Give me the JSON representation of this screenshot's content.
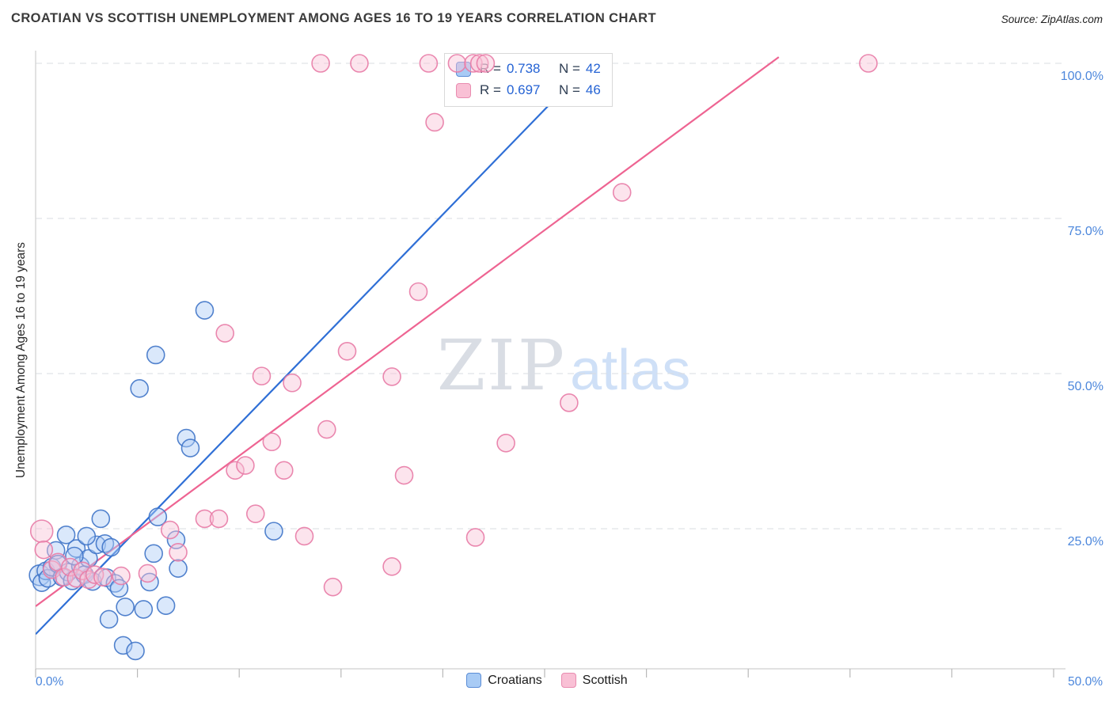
{
  "title": "CROATIAN VS SCOTTISH UNEMPLOYMENT AMONG AGES 16 TO 19 YEARS CORRELATION CHART",
  "source": "Source: ZipAtlas.com",
  "watermark": {
    "zip": "ZIP",
    "atlas": "atlas"
  },
  "legend_box": {
    "series": [
      {
        "name": "Croatians",
        "r_label": "R =",
        "r": "0.738",
        "n_label": "N =",
        "n": "42"
      },
      {
        "name": "Scottish",
        "r_label": "R =",
        "r": "0.697",
        "n_label": "N =",
        "n": "46"
      }
    ]
  },
  "axes": {
    "y_title": "Unemployment Among Ages 16 to 19 years",
    "y_ticks": [
      "100.0%",
      "75.0%",
      "50.0%",
      "25.0%"
    ],
    "x_min_label": "0.0%",
    "x_max_label": "50.0%"
  },
  "bottom_legend": [
    {
      "label": "Croatians"
    },
    {
      "label": "Scottish"
    }
  ],
  "colors": {
    "croatian_fill": "#aecdf6",
    "croatian_stroke": "#3f74c8",
    "croatian_line": "#2f6fd6",
    "scottish_fill": "#f9c4d7",
    "scottish_stroke": "#e87ba6",
    "scottish_line": "#ee6492",
    "axis_label_blue": "#4c87dc",
    "grid": "#dadde2"
  },
  "chart_data": {
    "type": "scatter",
    "xlabel": "",
    "ylabel": "Unemployment Among Ages 16 to 19 years",
    "xlim": [
      0,
      50
    ],
    "ylim": [
      0,
      105
    ],
    "x_tick_positions": [
      0,
      5,
      10,
      15,
      20,
      25,
      30,
      35,
      40,
      45,
      50
    ],
    "y_gridlines": [
      25,
      50,
      75,
      100
    ],
    "series": [
      {
        "name": "Croatians",
        "fill": "#aecdf6",
        "stroke": "#3f74c8",
        "points": [
          [
            0.2,
            17.5,
            13
          ],
          [
            0.3,
            16.3
          ],
          [
            0.5,
            18.2
          ],
          [
            0.6,
            17.0
          ],
          [
            0.8,
            18.8
          ],
          [
            1.0,
            21.5
          ],
          [
            1.1,
            19.3
          ],
          [
            1.3,
            17.2
          ],
          [
            1.5,
            24.0
          ],
          [
            1.6,
            18.0
          ],
          [
            1.8,
            16.6
          ],
          [
            2.0,
            21.8
          ],
          [
            2.2,
            19.0
          ],
          [
            2.4,
            17.6
          ],
          [
            2.6,
            20.2
          ],
          [
            2.8,
            16.5
          ],
          [
            3.0,
            22.4
          ],
          [
            3.2,
            26.6
          ],
          [
            3.4,
            22.6
          ],
          [
            3.5,
            17.1
          ],
          [
            3.7,
            22.0
          ],
          [
            3.9,
            16.2
          ],
          [
            4.1,
            15.4
          ],
          [
            4.4,
            12.4
          ],
          [
            3.6,
            10.4
          ],
          [
            4.3,
            6.2
          ],
          [
            4.9,
            5.3
          ],
          [
            5.3,
            12.0
          ],
          [
            5.6,
            16.4
          ],
          [
            6.0,
            26.9
          ],
          [
            5.1,
            47.6
          ],
          [
            5.9,
            53.0
          ],
          [
            8.3,
            60.2
          ],
          [
            7.4,
            39.6
          ],
          [
            7.6,
            38.0
          ],
          [
            7.0,
            18.6
          ],
          [
            6.4,
            12.6
          ],
          [
            5.8,
            21.0
          ],
          [
            11.7,
            24.6
          ],
          [
            6.9,
            23.2
          ],
          [
            2.5,
            23.8
          ],
          [
            1.9,
            20.6
          ]
        ]
      },
      {
        "name": "Scottish",
        "fill": "#f9c4d7",
        "stroke": "#e87ba6",
        "points": [
          [
            14.0,
            100
          ],
          [
            15.9,
            100
          ],
          [
            19.3,
            100
          ],
          [
            20.7,
            100
          ],
          [
            21.5,
            100
          ],
          [
            21.8,
            100
          ],
          [
            22.1,
            100
          ],
          [
            40.9,
            100
          ],
          [
            19.6,
            90.5
          ],
          [
            28.8,
            79.2
          ],
          [
            18.8,
            63.2
          ],
          [
            9.3,
            56.5
          ],
          [
            15.3,
            53.6
          ],
          [
            11.1,
            49.6
          ],
          [
            12.6,
            48.5
          ],
          [
            17.5,
            49.5
          ],
          [
            26.2,
            45.3
          ],
          [
            11.6,
            39.0
          ],
          [
            23.1,
            38.8
          ],
          [
            12.2,
            34.4
          ],
          [
            18.1,
            33.6
          ],
          [
            9.8,
            34.4
          ],
          [
            10.3,
            35.2
          ],
          [
            10.8,
            27.4
          ],
          [
            8.3,
            26.6
          ],
          [
            9.0,
            26.6
          ],
          [
            14.3,
            41.0
          ],
          [
            13.2,
            23.8
          ],
          [
            21.6,
            23.6
          ],
          [
            17.5,
            18.9
          ],
          [
            14.6,
            15.6
          ],
          [
            7.0,
            21.2
          ],
          [
            6.6,
            24.8
          ],
          [
            0.3,
            24.6,
            14
          ],
          [
            0.4,
            21.6
          ],
          [
            0.8,
            18.4
          ],
          [
            1.1,
            19.6
          ],
          [
            1.4,
            17.2
          ],
          [
            1.7,
            18.8
          ],
          [
            2.0,
            17.0
          ],
          [
            2.3,
            18.2
          ],
          [
            2.6,
            16.8
          ],
          [
            2.9,
            17.6
          ],
          [
            3.3,
            17.2
          ],
          [
            4.2,
            17.4
          ],
          [
            5.5,
            17.8
          ]
        ]
      }
    ],
    "trend_lines": [
      {
        "series": "Croatians",
        "color": "#2f6fd6",
        "x": [
          0,
          27.5
        ],
        "y": [
          8,
          101
        ]
      },
      {
        "series": "Scottish",
        "color": "#ee6492",
        "x": [
          0,
          36.5
        ],
        "y": [
          12.5,
          101
        ]
      }
    ]
  }
}
